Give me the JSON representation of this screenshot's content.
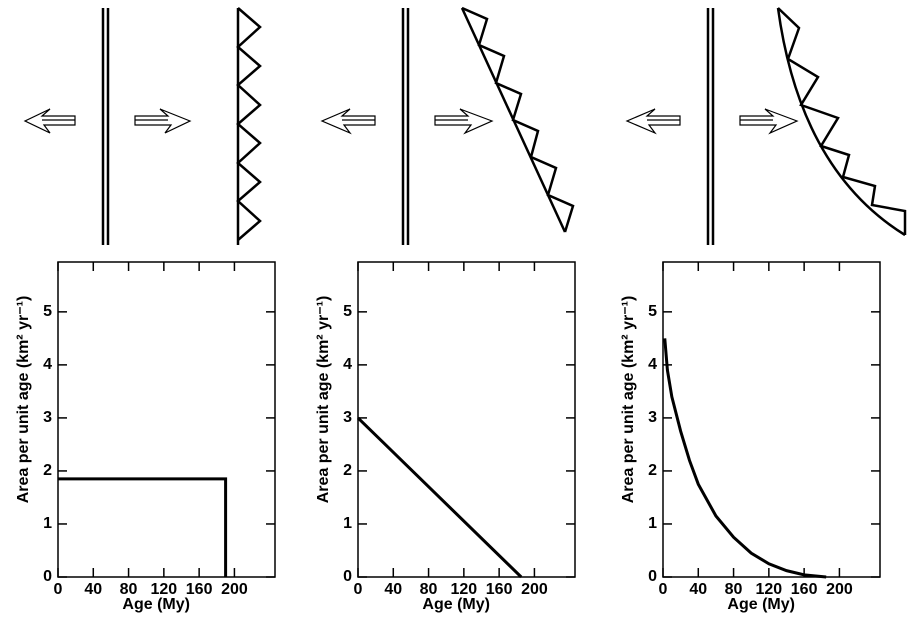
{
  "chart_data": [
    {
      "type": "line",
      "x": [
        0,
        190,
        190
      ],
      "values": [
        1.85,
        1.85,
        0
      ],
      "color": "#000000",
      "xlabel": "Age (My)",
      "ylabel": "Area per unit age (km² yr⁻¹)",
      "xlim": [
        0,
        246
      ],
      "ylim": [
        0,
        5.94
      ],
      "xticks": [
        0,
        40,
        80,
        120,
        160,
        200
      ],
      "yticks": [
        0,
        1,
        2,
        3,
        4,
        5
      ]
    },
    {
      "type": "line",
      "x": [
        0,
        185
      ],
      "values": [
        3,
        0
      ],
      "color": "#000000",
      "xlabel": "Age (My)",
      "ylabel": "Area per unit age (km² yr⁻¹)",
      "xlim": [
        0,
        246
      ],
      "ylim": [
        0,
        5.94
      ],
      "xticks": [
        0,
        40,
        80,
        120,
        160,
        200
      ],
      "yticks": [
        0,
        1,
        2,
        3,
        4,
        5
      ]
    },
    {
      "type": "line",
      "x": [
        2,
        5,
        10,
        20,
        30,
        40,
        60,
        80,
        100,
        120,
        140,
        160,
        185
      ],
      "values": [
        4.5,
        3.9,
        3.4,
        2.75,
        2.2,
        1.75,
        1.15,
        0.75,
        0.45,
        0.25,
        0.12,
        0.04,
        0
      ],
      "color": "#000000",
      "xlabel": "Age (My)",
      "ylabel": "Area per unit age (km² yr⁻¹)",
      "xlim": [
        0,
        246
      ],
      "ylim": [
        0,
        5.94
      ],
      "xticks": [
        0,
        40,
        80,
        120,
        160,
        200
      ],
      "yticks": [
        0,
        1,
        2,
        3,
        4,
        5
      ]
    }
  ]
}
